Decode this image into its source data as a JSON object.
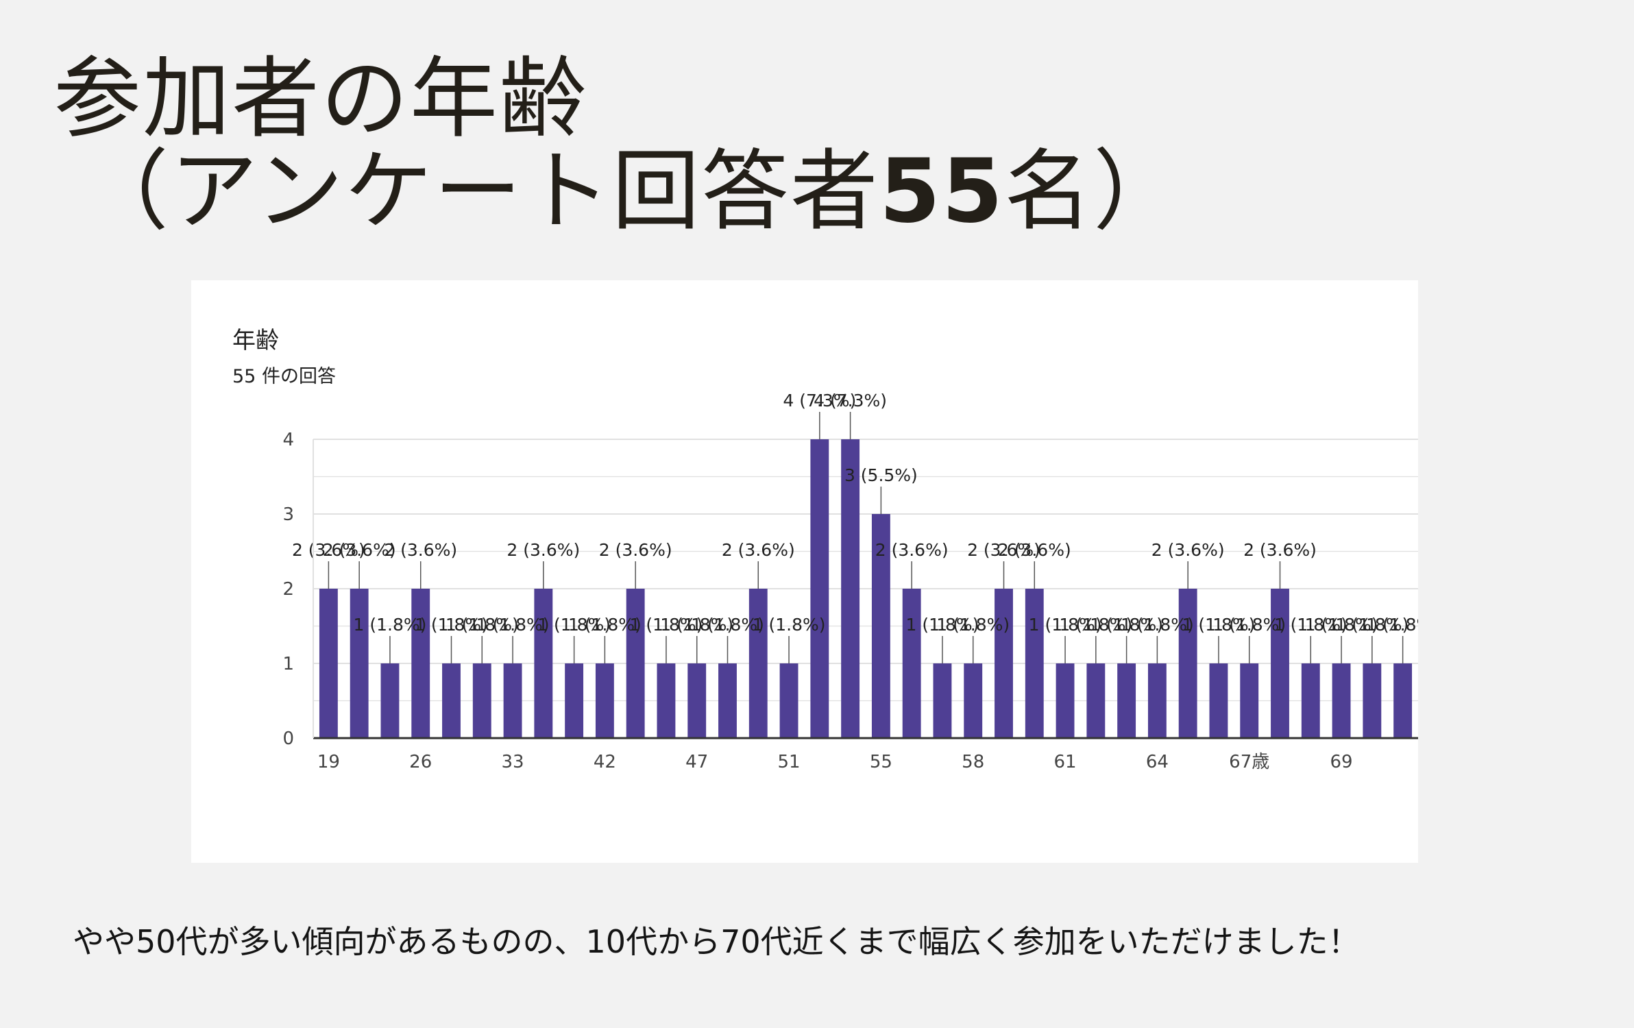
{
  "slide": {
    "title_line1": "参加者の年齢",
    "title_line2_prefix": "（アンケート回答者",
    "title_line2_number": "55",
    "title_line2_suffix": "名）",
    "caption": "やや50代が多い傾向があるものの、10代から70代近くまで幅広く参加をいただけました！"
  },
  "colors": {
    "bar": "#4f3f94",
    "gridline": "#e0e0e0",
    "axis": "#333333",
    "background": "#f2f2f2",
    "card": "#ffffff"
  },
  "chart_data": {
    "type": "bar",
    "title": "年齢",
    "subtitle": "55 件の回答",
    "ylim": [
      0,
      4
    ],
    "yticks": [
      "0",
      "1",
      "2",
      "3",
      "4"
    ],
    "grid": true,
    "categories": [
      "19",
      "",
      "",
      "26",
      "",
      "",
      "33",
      "",
      "",
      "42",
      "",
      "",
      "47",
      "",
      "",
      "51",
      "",
      "",
      "55",
      "",
      "",
      "58",
      "",
      "",
      "61",
      "",
      "",
      "64",
      "",
      "",
      "67歳",
      "",
      "",
      "69",
      "",
      ""
    ],
    "values": [
      2,
      2,
      1,
      2,
      1,
      1,
      1,
      2,
      1,
      1,
      2,
      1,
      1,
      1,
      2,
      1,
      4,
      4,
      3,
      2,
      1,
      1,
      2,
      2,
      1,
      1,
      1,
      1,
      2,
      1,
      1,
      2,
      1,
      1,
      1,
      1
    ],
    "percent_labels": {
      "1": "(1.8%)",
      "2": "(3.6%)",
      "3": "(5.5%)",
      "4": "(7.3%)"
    }
  }
}
